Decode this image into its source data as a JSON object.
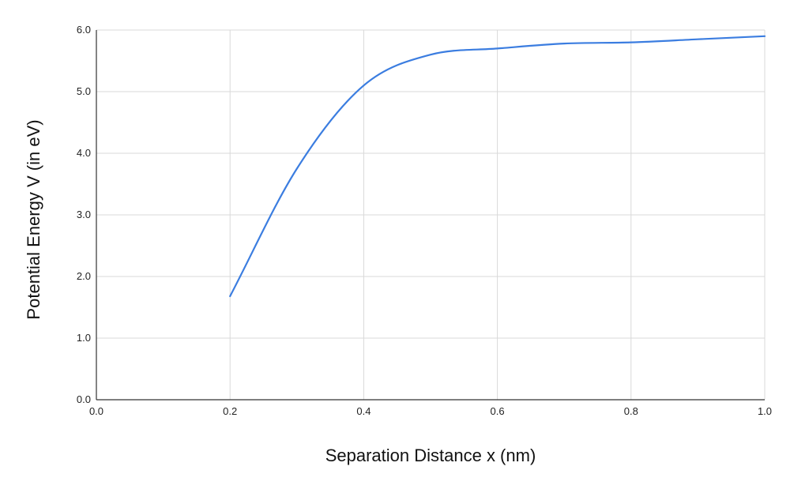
{
  "chart_data": {
    "type": "line",
    "title": "",
    "xlabel": "Separation Distance x (nm)",
    "ylabel": "Potential Energy V (in eV)",
    "xlim": [
      0.0,
      1.0
    ],
    "ylim": [
      0.0,
      6.0
    ],
    "x_ticks": [
      0.0,
      0.2,
      0.4,
      0.6,
      0.8,
      1.0
    ],
    "y_ticks": [
      0.0,
      1.0,
      2.0,
      3.0,
      4.0,
      5.0,
      6.0
    ],
    "x_tick_labels": [
      "0.0",
      "0.2",
      "0.4",
      "0.6",
      "0.8",
      "1.0"
    ],
    "y_tick_labels": [
      "0.0",
      "1.0",
      "2.0",
      "3.0",
      "4.0",
      "5.0",
      "6.0"
    ],
    "grid": true,
    "legend": "none",
    "series": [
      {
        "color": "#3b7de0",
        "smooth": true,
        "x": [
          0.2,
          0.3,
          0.4,
          0.5,
          0.6,
          0.7,
          0.8,
          0.9,
          1.0
        ],
        "y": [
          1.68,
          3.75,
          5.1,
          5.6,
          5.7,
          5.78,
          5.8,
          5.85,
          5.9
        ]
      }
    ]
  },
  "colors": {
    "grid": "#d9d9d9",
    "axis": "#333333",
    "series": "#3b7de0"
  }
}
